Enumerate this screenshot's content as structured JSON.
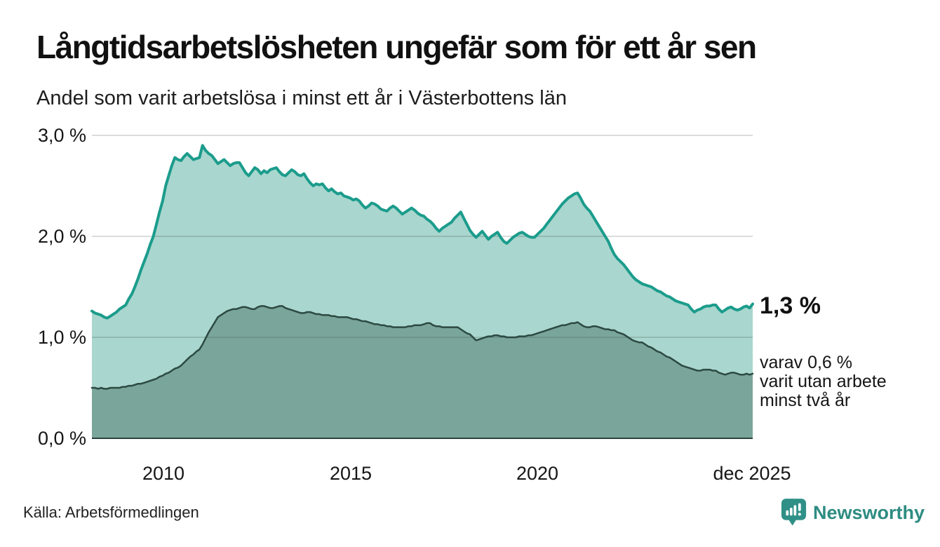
{
  "header": {
    "title": "Långtidsarbetslösheten ungefär som för ett år sen",
    "subtitle": "Andel som varit arbetslösa i minst ett år i Västerbottens län"
  },
  "chart": {
    "y_axis": {
      "ticks": [
        "3,0 %",
        "2,0 %",
        "1,0 %",
        "0,0 %"
      ]
    },
    "x_axis": {
      "ticks": [
        "2010",
        "2015",
        "2020",
        "dec 2025"
      ]
    },
    "annotations": {
      "latest_value": "1,3 %",
      "note_lines": [
        "varav 0,6 %",
        "varit utan arbete",
        "minst två år"
      ]
    }
  },
  "footer": {
    "source": "Källa: Arbetsförmedlingen",
    "brand": "Newsworthy"
  },
  "colors": {
    "line_one_year": "#1b9c8c",
    "fill_one_year": "#a9d6ce",
    "line_two_years": "#2c4a42",
    "fill_two_years": "#7aa59b",
    "gridline": "rgba(45,60,56,0.18)",
    "baseline": "#2c423d",
    "brand_teal": "#2e8c82",
    "text": "#111111"
  },
  "chart_data": {
    "type": "area",
    "title": "Långtidsarbetslösheten ungefär som för ett år sen",
    "subtitle": "Andel som varit arbetslösa i minst ett år i Västerbottens län",
    "unit": "%",
    "x_start_year": 2008,
    "x_start_month": 1,
    "x_end_year": 2025,
    "x_end_month": 12,
    "x_tick_labels": [
      "2010",
      "2015",
      "2020",
      "dec 2025"
    ],
    "ylim": [
      0,
      3.0
    ],
    "y_ticks": [
      0,
      1,
      2,
      3
    ],
    "grid": "horizontal",
    "legend_position": "right-annotations",
    "series": [
      {
        "name": "Andel arbetslösa minst ett år",
        "latest_value": 1.3,
        "color": "#1b9c8c",
        "fill": "#a9d6ce",
        "values": [
          1.26,
          1.24,
          1.23,
          1.22,
          1.2,
          1.19,
          1.21,
          1.23,
          1.25,
          1.28,
          1.3,
          1.32,
          1.38,
          1.43,
          1.5,
          1.58,
          1.67,
          1.75,
          1.83,
          1.92,
          2.0,
          2.12,
          2.24,
          2.35,
          2.5,
          2.6,
          2.7,
          2.78,
          2.76,
          2.75,
          2.79,
          2.82,
          2.79,
          2.76,
          2.77,
          2.78,
          2.9,
          2.85,
          2.82,
          2.8,
          2.76,
          2.72,
          2.74,
          2.76,
          2.73,
          2.7,
          2.72,
          2.73,
          2.73,
          2.68,
          2.63,
          2.6,
          2.64,
          2.68,
          2.66,
          2.62,
          2.65,
          2.63,
          2.66,
          2.67,
          2.68,
          2.64,
          2.61,
          2.6,
          2.63,
          2.66,
          2.64,
          2.61,
          2.6,
          2.62,
          2.57,
          2.53,
          2.5,
          2.52,
          2.51,
          2.52,
          2.48,
          2.45,
          2.47,
          2.44,
          2.42,
          2.43,
          2.4,
          2.39,
          2.38,
          2.36,
          2.37,
          2.35,
          2.31,
          2.28,
          2.3,
          2.33,
          2.32,
          2.3,
          2.27,
          2.26,
          2.25,
          2.28,
          2.3,
          2.28,
          2.25,
          2.22,
          2.24,
          2.26,
          2.28,
          2.26,
          2.23,
          2.21,
          2.2,
          2.17,
          2.15,
          2.12,
          2.08,
          2.05,
          2.08,
          2.1,
          2.12,
          2.14,
          2.18,
          2.21,
          2.24,
          2.18,
          2.12,
          2.06,
          2.02,
          1.99,
          2.02,
          2.05,
          2.01,
          1.97,
          2.0,
          2.02,
          2.04,
          1.99,
          1.95,
          1.93,
          1.96,
          1.99,
          2.01,
          2.03,
          2.04,
          2.02,
          2.0,
          1.99,
          1.99,
          2.02,
          2.05,
          2.08,
          2.12,
          2.16,
          2.2,
          2.24,
          2.28,
          2.32,
          2.35,
          2.38,
          2.4,
          2.42,
          2.43,
          2.38,
          2.32,
          2.28,
          2.25,
          2.2,
          2.15,
          2.1,
          2.05,
          2.0,
          1.95,
          1.88,
          1.82,
          1.78,
          1.75,
          1.72,
          1.68,
          1.64,
          1.6,
          1.57,
          1.55,
          1.53,
          1.52,
          1.51,
          1.5,
          1.48,
          1.46,
          1.45,
          1.43,
          1.41,
          1.4,
          1.38,
          1.36,
          1.35,
          1.34,
          1.33,
          1.32,
          1.28,
          1.25,
          1.27,
          1.28,
          1.3,
          1.31,
          1.31,
          1.32,
          1.32,
          1.28,
          1.25,
          1.27,
          1.29,
          1.3,
          1.28,
          1.27,
          1.28,
          1.3,
          1.31,
          1.29,
          1.33
        ]
      },
      {
        "name": "varav utan arbete minst två år",
        "latest_value": 0.6,
        "color": "#2c4a42",
        "fill": "#7aa59b",
        "values": [
          0.5,
          0.5,
          0.49,
          0.5,
          0.49,
          0.49,
          0.5,
          0.5,
          0.5,
          0.5,
          0.51,
          0.51,
          0.52,
          0.52,
          0.53,
          0.54,
          0.54,
          0.55,
          0.56,
          0.57,
          0.58,
          0.59,
          0.61,
          0.62,
          0.64,
          0.65,
          0.67,
          0.69,
          0.7,
          0.72,
          0.75,
          0.78,
          0.81,
          0.83,
          0.86,
          0.88,
          0.93,
          0.99,
          1.05,
          1.1,
          1.15,
          1.2,
          1.22,
          1.24,
          1.26,
          1.27,
          1.28,
          1.28,
          1.29,
          1.3,
          1.3,
          1.29,
          1.28,
          1.28,
          1.3,
          1.31,
          1.31,
          1.3,
          1.29,
          1.29,
          1.3,
          1.31,
          1.31,
          1.29,
          1.28,
          1.27,
          1.26,
          1.25,
          1.24,
          1.24,
          1.25,
          1.25,
          1.24,
          1.23,
          1.23,
          1.22,
          1.22,
          1.22,
          1.21,
          1.21,
          1.2,
          1.2,
          1.2,
          1.2,
          1.19,
          1.18,
          1.18,
          1.17,
          1.16,
          1.16,
          1.15,
          1.14,
          1.13,
          1.13,
          1.12,
          1.12,
          1.11,
          1.11,
          1.1,
          1.1,
          1.1,
          1.1,
          1.1,
          1.11,
          1.11,
          1.12,
          1.12,
          1.12,
          1.13,
          1.14,
          1.14,
          1.12,
          1.11,
          1.11,
          1.1,
          1.1,
          1.1,
          1.1,
          1.1,
          1.1,
          1.08,
          1.06,
          1.04,
          1.03,
          1.0,
          0.97,
          0.98,
          0.99,
          1.0,
          1.01,
          1.01,
          1.02,
          1.02,
          1.01,
          1.01,
          1.0,
          1.0,
          1.0,
          1.0,
          1.01,
          1.01,
          1.01,
          1.02,
          1.02,
          1.03,
          1.04,
          1.05,
          1.06,
          1.07,
          1.08,
          1.09,
          1.1,
          1.11,
          1.12,
          1.12,
          1.13,
          1.14,
          1.14,
          1.15,
          1.13,
          1.11,
          1.1,
          1.1,
          1.11,
          1.11,
          1.1,
          1.09,
          1.08,
          1.08,
          1.07,
          1.07,
          1.05,
          1.04,
          1.03,
          1.01,
          0.99,
          0.97,
          0.96,
          0.95,
          0.95,
          0.93,
          0.91,
          0.9,
          0.88,
          0.86,
          0.85,
          0.83,
          0.81,
          0.8,
          0.78,
          0.76,
          0.74,
          0.72,
          0.71,
          0.7,
          0.69,
          0.68,
          0.67,
          0.67,
          0.68,
          0.68,
          0.68,
          0.67,
          0.67,
          0.65,
          0.64,
          0.63,
          0.64,
          0.65,
          0.65,
          0.64,
          0.63,
          0.63,
          0.64,
          0.63,
          0.64
        ]
      }
    ]
  }
}
